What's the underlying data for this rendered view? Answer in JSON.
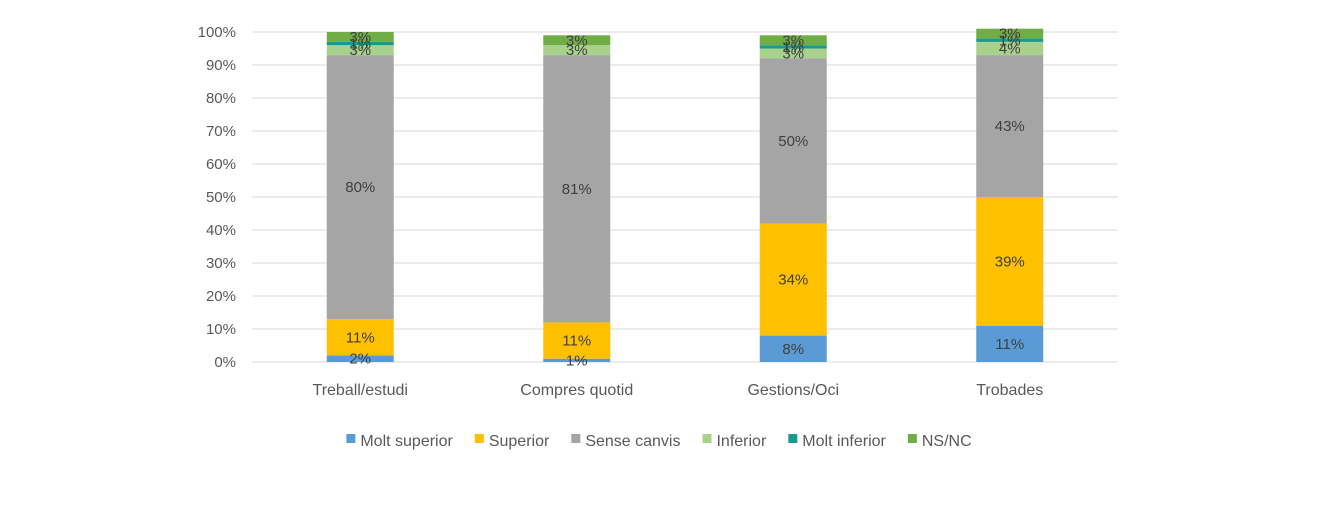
{
  "chart_data": {
    "type": "bar",
    "stacked": true,
    "categories": [
      "Treball/estudi",
      "Compres quotid",
      "Gestions/Oci",
      "Trobades"
    ],
    "series": [
      {
        "name": "Molt superior",
        "color": "#5B9BD5",
        "values": [
          2,
          1,
          8,
          11
        ],
        "labels": [
          "2%",
          "1%",
          "8%",
          "11%"
        ]
      },
      {
        "name": "Superior",
        "color": "#FFC000",
        "values": [
          11,
          11,
          34,
          39
        ],
        "labels": [
          "11%",
          "11%",
          "34%",
          "39%"
        ]
      },
      {
        "name": "Sense canvis",
        "color": "#A5A5A5",
        "values": [
          80,
          81,
          50,
          43
        ],
        "labels": [
          "80%",
          "81%",
          "50%",
          "43%"
        ]
      },
      {
        "name": "Inferior",
        "color": "#A9D18E",
        "values": [
          3,
          3,
          3,
          4
        ],
        "labels": [
          "3%",
          "3%",
          "3%",
          "4%"
        ]
      },
      {
        "name": "Molt inferior",
        "color": "#1A9A8C",
        "values": [
          1,
          0,
          1,
          1
        ],
        "labels": [
          "1%",
          "",
          "1%",
          "1%"
        ]
      },
      {
        "name": "NS/NC",
        "color": "#70AD47",
        "values": [
          3,
          3,
          3,
          3
        ],
        "labels": [
          "3%",
          "3%",
          "3%",
          "3%"
        ]
      }
    ],
    "yticks": [
      "0%",
      "10%",
      "20%",
      "30%",
      "40%",
      "50%",
      "60%",
      "70%",
      "80%",
      "90%",
      "100%"
    ],
    "ylim": [
      0,
      100
    ],
    "grid": true,
    "legend": "bottom",
    "title": "",
    "xlabel": "",
    "ylabel": ""
  }
}
